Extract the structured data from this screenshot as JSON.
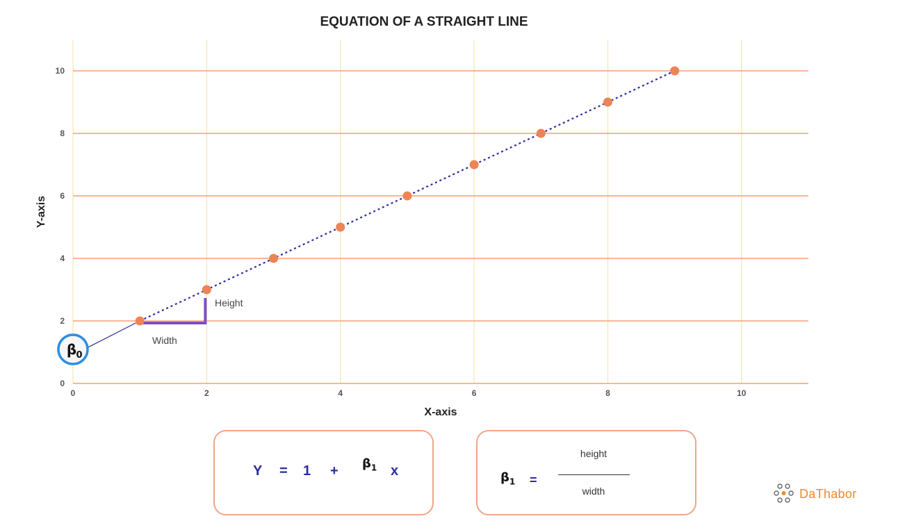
{
  "colors": {
    "hgrid": "#f2a176",
    "vgrid": "#f5e6b8",
    "point": "#ee8455",
    "line": "#2a2f9a",
    "bracket": "#7b4fc8",
    "beta_ring": "#2d8fe0",
    "box_border": "#f0a58a",
    "logo": "#f08a2a"
  },
  "chart_data": {
    "type": "scatter",
    "title": "EQUATION OF A STRAIGHT LINE",
    "xlabel": "X-axis",
    "ylabel": "Y-axis",
    "xlim": [
      0,
      11
    ],
    "ylim": [
      0,
      11
    ],
    "xticks": [
      0,
      2,
      4,
      6,
      8,
      10
    ],
    "yticks": [
      0,
      2,
      4,
      6,
      8,
      10
    ],
    "grid": true,
    "series": [
      {
        "x": [
          1,
          2,
          3,
          4,
          5,
          6,
          7,
          8,
          9
        ],
        "y": [
          2,
          3,
          4,
          5,
          6,
          7,
          8,
          9,
          10
        ]
      }
    ],
    "intercept": {
      "x": 0,
      "y": 1,
      "label": "β",
      "sub": "0"
    },
    "annotations": {
      "height_label": "Height",
      "width_label": "Width"
    }
  },
  "equation": {
    "y": "Y",
    "eq": "=",
    "one": "1",
    "plus": "+",
    "beta": "β",
    "beta_sub": "1",
    "x": "x"
  },
  "slope": {
    "beta": "β",
    "beta_sub": "1",
    "eq": "=",
    "numerator": "height",
    "denominator": "width"
  },
  "logo": {
    "text": "DaThabor",
    "icon": "dots-cluster-icon"
  }
}
